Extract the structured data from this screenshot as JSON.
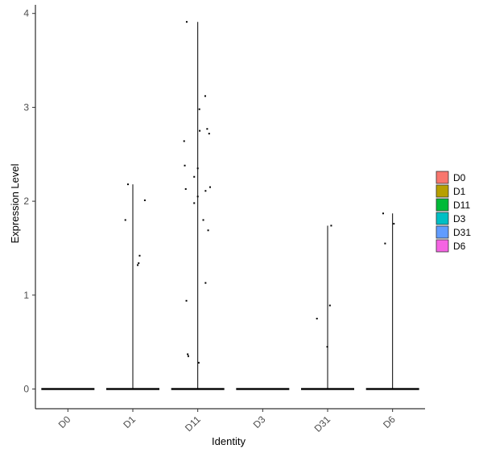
{
  "chart_data": {
    "type": "violin",
    "xlabel": "Identity",
    "ylabel": "Expression Level",
    "categories": [
      "D0",
      "D1",
      "D11",
      "D3",
      "D31",
      "D6"
    ],
    "ylim": [
      -0.2,
      4.1
    ],
    "yticks": [
      0,
      1,
      2,
      3,
      4
    ],
    "grid": false,
    "legend": {
      "position": "right",
      "entries": [
        {
          "label": "D0",
          "color": "#F8766D"
        },
        {
          "label": "D1",
          "color": "#B79F00"
        },
        {
          "label": "D11",
          "color": "#00BA38"
        },
        {
          "label": "D3",
          "color": "#00BFC4"
        },
        {
          "label": "D31",
          "color": "#619CFF"
        },
        {
          "label": "D6",
          "color": "#F564E3"
        }
      ]
    },
    "series": [
      {
        "name": "D0",
        "max": 0.0,
        "points": []
      },
      {
        "name": "D1",
        "max": 2.18,
        "points": [
          {
            "x": -0.23,
            "y": 1.8
          },
          {
            "x": -0.15,
            "y": 2.18
          },
          {
            "x": 0.15,
            "y": 1.32
          },
          {
            "x": 0.18,
            "y": 1.34
          },
          {
            "x": 0.21,
            "y": 1.42
          },
          {
            "x": 0.37,
            "y": 2.01
          }
        ]
      },
      {
        "name": "D11",
        "max": 3.91,
        "points": [
          {
            "x": -0.42,
            "y": 2.64
          },
          {
            "x": -0.4,
            "y": 2.38
          },
          {
            "x": -0.37,
            "y": 2.13
          },
          {
            "x": -0.35,
            "y": 0.94
          },
          {
            "x": -0.31,
            "y": 0.37
          },
          {
            "x": -0.29,
            "y": 0.35
          },
          {
            "x": -0.34,
            "y": 3.91
          },
          {
            "x": -0.11,
            "y": 1.98
          },
          {
            "x": -0.11,
            "y": 2.26
          },
          {
            "x": 0.0,
            "y": 2.35
          },
          {
            "x": 0.0,
            "y": 2.05
          },
          {
            "x": 0.03,
            "y": 0.28
          },
          {
            "x": 0.05,
            "y": 2.98
          },
          {
            "x": 0.06,
            "y": 2.75
          },
          {
            "x": 0.17,
            "y": 1.8
          },
          {
            "x": 0.23,
            "y": 3.12
          },
          {
            "x": 0.24,
            "y": 2.11
          },
          {
            "x": 0.24,
            "y": 1.13
          },
          {
            "x": 0.29,
            "y": 2.77
          },
          {
            "x": 0.32,
            "y": 1.69
          },
          {
            "x": 0.35,
            "y": 2.72
          },
          {
            "x": 0.38,
            "y": 2.15
          }
        ]
      },
      {
        "name": "D3",
        "max": 0.0,
        "points": []
      },
      {
        "name": "D31",
        "max": 1.74,
        "points": [
          {
            "x": -0.33,
            "y": 0.75
          },
          {
            "x": -0.01,
            "y": 0.45
          },
          {
            "x": 0.07,
            "y": 0.89
          },
          {
            "x": 0.11,
            "y": 1.74
          }
        ]
      },
      {
        "name": "D6",
        "max": 1.87,
        "points": [
          {
            "x": -0.29,
            "y": 1.87
          },
          {
            "x": -0.23,
            "y": 1.55
          },
          {
            "x": 0.04,
            "y": 1.76
          }
        ]
      }
    ]
  }
}
